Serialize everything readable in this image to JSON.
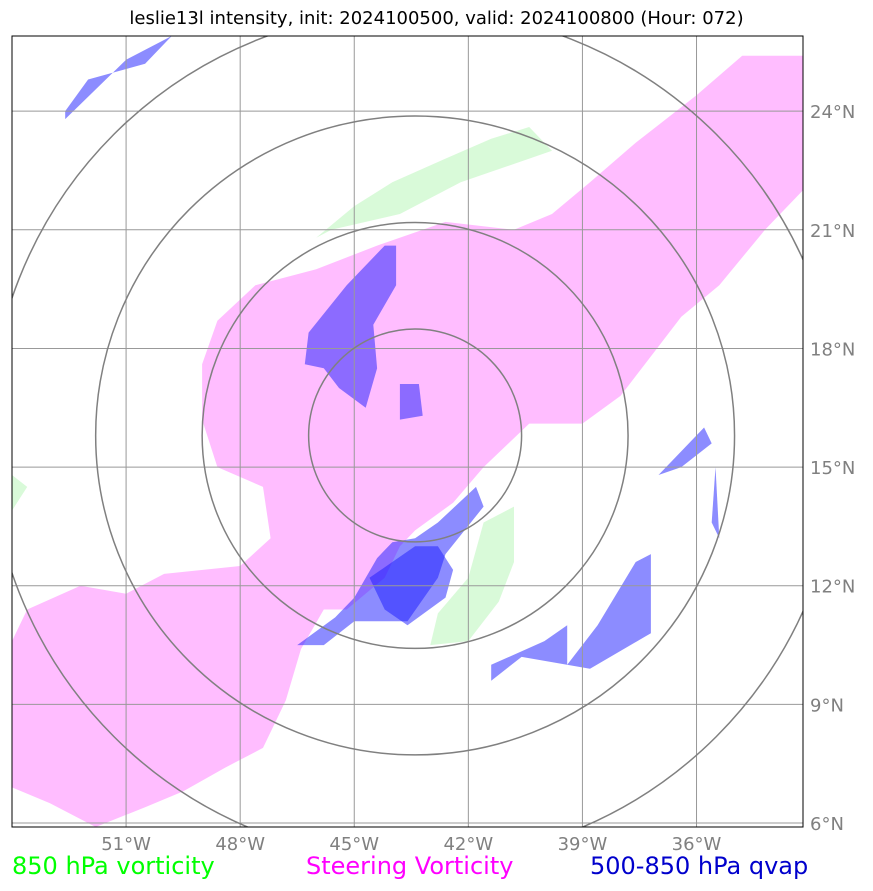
{
  "title": "leslie13l intensity, init: 2024100500, valid: 2024100800 (Hour: 072)",
  "map": {
    "lon_range": [
      -54,
      -33.2
    ],
    "lat_range": [
      5.9,
      25.9
    ],
    "lon_ticks": [
      {
        "value": -51,
        "label": "51°W"
      },
      {
        "value": -48,
        "label": "48°W"
      },
      {
        "value": -45,
        "label": "45°W"
      },
      {
        "value": -42,
        "label": "42°W"
      },
      {
        "value": -39,
        "label": "39°W"
      },
      {
        "value": -36,
        "label": "36°W"
      }
    ],
    "lat_ticks": [
      {
        "value": 6,
        "label": "6°N"
      },
      {
        "value": 9,
        "label": "9°N"
      },
      {
        "value": 12,
        "label": "12°N"
      },
      {
        "value": 15,
        "label": "15°N"
      },
      {
        "value": 18,
        "label": "18°N"
      },
      {
        "value": 21,
        "label": "21°N"
      },
      {
        "value": 24,
        "label": "24°N"
      }
    ],
    "center": {
      "lon": -43.4,
      "lat": 15.8
    },
    "range_rings_deg": [
      2.8,
      5.6,
      8.4,
      11.2
    ],
    "grid": true
  },
  "legend": [
    {
      "label": "850 hPa vorticity",
      "color": "#00ff00"
    },
    {
      "label": "Steering Vorticity",
      "color": "#ff00ff"
    },
    {
      "label": "500-850 hPa qvap",
      "color": "#0000cc"
    }
  ],
  "fields": {
    "steering_vorticity": {
      "color": "#ff00ff",
      "polygons": [
        [
          [
            -33.2,
            25.4
          ],
          [
            -34.8,
            25.4
          ],
          [
            -36,
            24.4
          ],
          [
            -37.6,
            23.2
          ],
          [
            -38.8,
            22.2
          ],
          [
            -39.8,
            21.4
          ],
          [
            -40.8,
            21.0
          ],
          [
            -42.6,
            21.2
          ],
          [
            -44.4,
            20.6
          ],
          [
            -46,
            20.0
          ],
          [
            -47.6,
            19.6
          ],
          [
            -48.6,
            18.7
          ],
          [
            -49,
            17.6
          ],
          [
            -49,
            16.2
          ],
          [
            -48.6,
            15.0
          ],
          [
            -47.4,
            14.5
          ],
          [
            -47.2,
            13.2
          ],
          [
            -48,
            12.5
          ],
          [
            -50,
            12.3
          ],
          [
            -51,
            11.8
          ],
          [
            -52.2,
            12
          ],
          [
            -53.6,
            11.4
          ],
          [
            -54,
            10.6
          ],
          [
            -54,
            6.9
          ],
          [
            -53,
            6.5
          ],
          [
            -51.8,
            5.9
          ],
          [
            -50.5,
            6.4
          ],
          [
            -49.5,
            6.8
          ],
          [
            -48.4,
            7.4
          ],
          [
            -47.4,
            7.9
          ],
          [
            -46.8,
            9.1
          ],
          [
            -46.4,
            10.4
          ],
          [
            -45.8,
            11.4
          ],
          [
            -45.2,
            11.4
          ],
          [
            -44.2,
            12.2
          ],
          [
            -43.8,
            13.0
          ],
          [
            -43.4,
            13.4
          ],
          [
            -42.4,
            14.1
          ],
          [
            -41.6,
            15.0
          ],
          [
            -40.4,
            16.1
          ],
          [
            -39,
            16.1
          ],
          [
            -38,
            16.8
          ],
          [
            -37.2,
            17.8
          ],
          [
            -36.4,
            18.8
          ],
          [
            -35.4,
            19.6
          ],
          [
            -34.2,
            21
          ],
          [
            -33.2,
            22.0
          ]
        ]
      ]
    },
    "vorticity_850": {
      "color": "#ccffcc",
      "polygons": [
        [
          [
            -44,
            22.2
          ],
          [
            -42.6,
            22.8
          ],
          [
            -41.4,
            23.3
          ],
          [
            -40.4,
            23.6
          ],
          [
            -39.8,
            23.0
          ],
          [
            -41.0,
            22.6
          ],
          [
            -42.2,
            22.2
          ],
          [
            -43.8,
            21.4
          ],
          [
            -45.6,
            21.0
          ],
          [
            -46.0,
            20.8
          ],
          [
            -45.0,
            21.6
          ]
        ],
        [
          [
            -40.8,
            14.0
          ],
          [
            -41.6,
            13.6
          ],
          [
            -42.0,
            12.2
          ],
          [
            -42.8,
            11.3
          ],
          [
            -43.0,
            10.5
          ],
          [
            -42.0,
            10.6
          ],
          [
            -41.2,
            11.6
          ],
          [
            -40.8,
            12.6
          ]
        ],
        [
          [
            -54,
            14.8
          ],
          [
            -53.6,
            14.5
          ],
          [
            -54,
            13.9
          ]
        ]
      ]
    },
    "qvap_500_850": {
      "color": "#0000ff",
      "polygons": [
        [
          [
            -46.2,
            18.4
          ],
          [
            -45.2,
            19.6
          ],
          [
            -44.2,
            20.6
          ],
          [
            -43.9,
            20.6
          ],
          [
            -43.9,
            19.6
          ],
          [
            -44.5,
            18.6
          ],
          [
            -44.4,
            17.5
          ],
          [
            -44.7,
            16.5
          ],
          [
            -45.4,
            17.0
          ],
          [
            -45.8,
            17.5
          ],
          [
            -46.3,
            17.6
          ]
        ],
        [
          [
            -43.8,
            16.2
          ],
          [
            -43.8,
            17.1
          ],
          [
            -43.3,
            17.1
          ],
          [
            -43.2,
            16.3
          ]
        ],
        [
          [
            -41.6,
            14.0
          ],
          [
            -41.8,
            14.5
          ],
          [
            -42.8,
            13.6
          ],
          [
            -43.4,
            13.2
          ],
          [
            -44.0,
            13.1
          ],
          [
            -44.4,
            12.7
          ],
          [
            -45.0,
            11.7
          ],
          [
            -45.5,
            11.2
          ],
          [
            -46.5,
            10.5
          ],
          [
            -45.8,
            10.5
          ],
          [
            -45.0,
            11.1
          ],
          [
            -43.6,
            11.1
          ],
          [
            -42.8,
            12.2
          ],
          [
            -42.6,
            12.8
          ]
        ],
        [
          [
            -44.6,
            12.2
          ],
          [
            -44.2,
            11.4
          ],
          [
            -43.6,
            11.0
          ],
          [
            -42.6,
            11.7
          ],
          [
            -42.4,
            12.4
          ],
          [
            -42.8,
            13.0
          ],
          [
            -43.4,
            13.0
          ],
          [
            -44.0,
            12.6
          ]
        ],
        [
          [
            -41.4,
            10.0
          ],
          [
            -40.0,
            10.6
          ],
          [
            -39.4,
            11.0
          ],
          [
            -39.4,
            10.0
          ],
          [
            -38.6,
            11.0
          ],
          [
            -37.6,
            12.6
          ],
          [
            -37.2,
            12.8
          ],
          [
            -37.2,
            10.8
          ],
          [
            -38.8,
            9.9
          ],
          [
            -40.6,
            10.2
          ],
          [
            -41.4,
            9.6
          ]
        ],
        [
          [
            -37.0,
            14.8
          ],
          [
            -35.8,
            16.0
          ],
          [
            -35.6,
            15.6
          ],
          [
            -36.4,
            15.0
          ]
        ],
        [
          [
            -35.5,
            15.0
          ],
          [
            -35.4,
            13.2
          ],
          [
            -35.6,
            13.6
          ]
        ],
        [
          [
            -52.6,
            23.8
          ],
          [
            -51,
            25.3
          ],
          [
            -49.8,
            25.9
          ],
          [
            -50.5,
            25.2
          ],
          [
            -52.0,
            24.8
          ],
          [
            -52.6,
            24.0
          ]
        ]
      ]
    }
  }
}
